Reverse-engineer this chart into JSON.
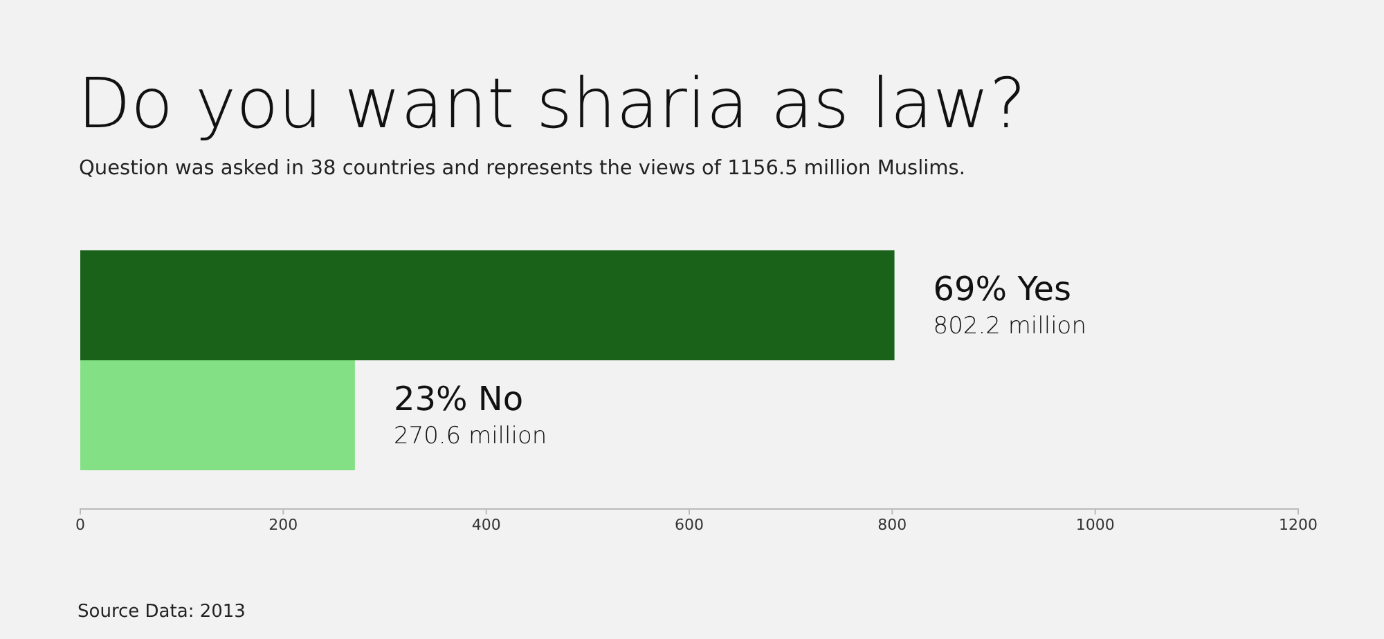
{
  "chart_data": {
    "type": "bar",
    "orientation": "horizontal",
    "title": "Do you want sharia as law?",
    "subtitle": "Question was asked in 38 countries and represents the views of 1156.5 million Muslims.",
    "categories": [
      null,
      null
    ],
    "values": [
      802.2,
      270.6
    ],
    "colors": [
      "#1a6119",
      "#84e084"
    ],
    "xlim": [
      0,
      1200
    ],
    "xticks": [
      0,
      200,
      400,
      600,
      800,
      1000,
      1200
    ],
    "grid": false,
    "annotations": [
      "69% Yes",
      "802.2 million",
      "23% No",
      "270.6 million",
      "Source Data: 2013"
    ]
  }
}
